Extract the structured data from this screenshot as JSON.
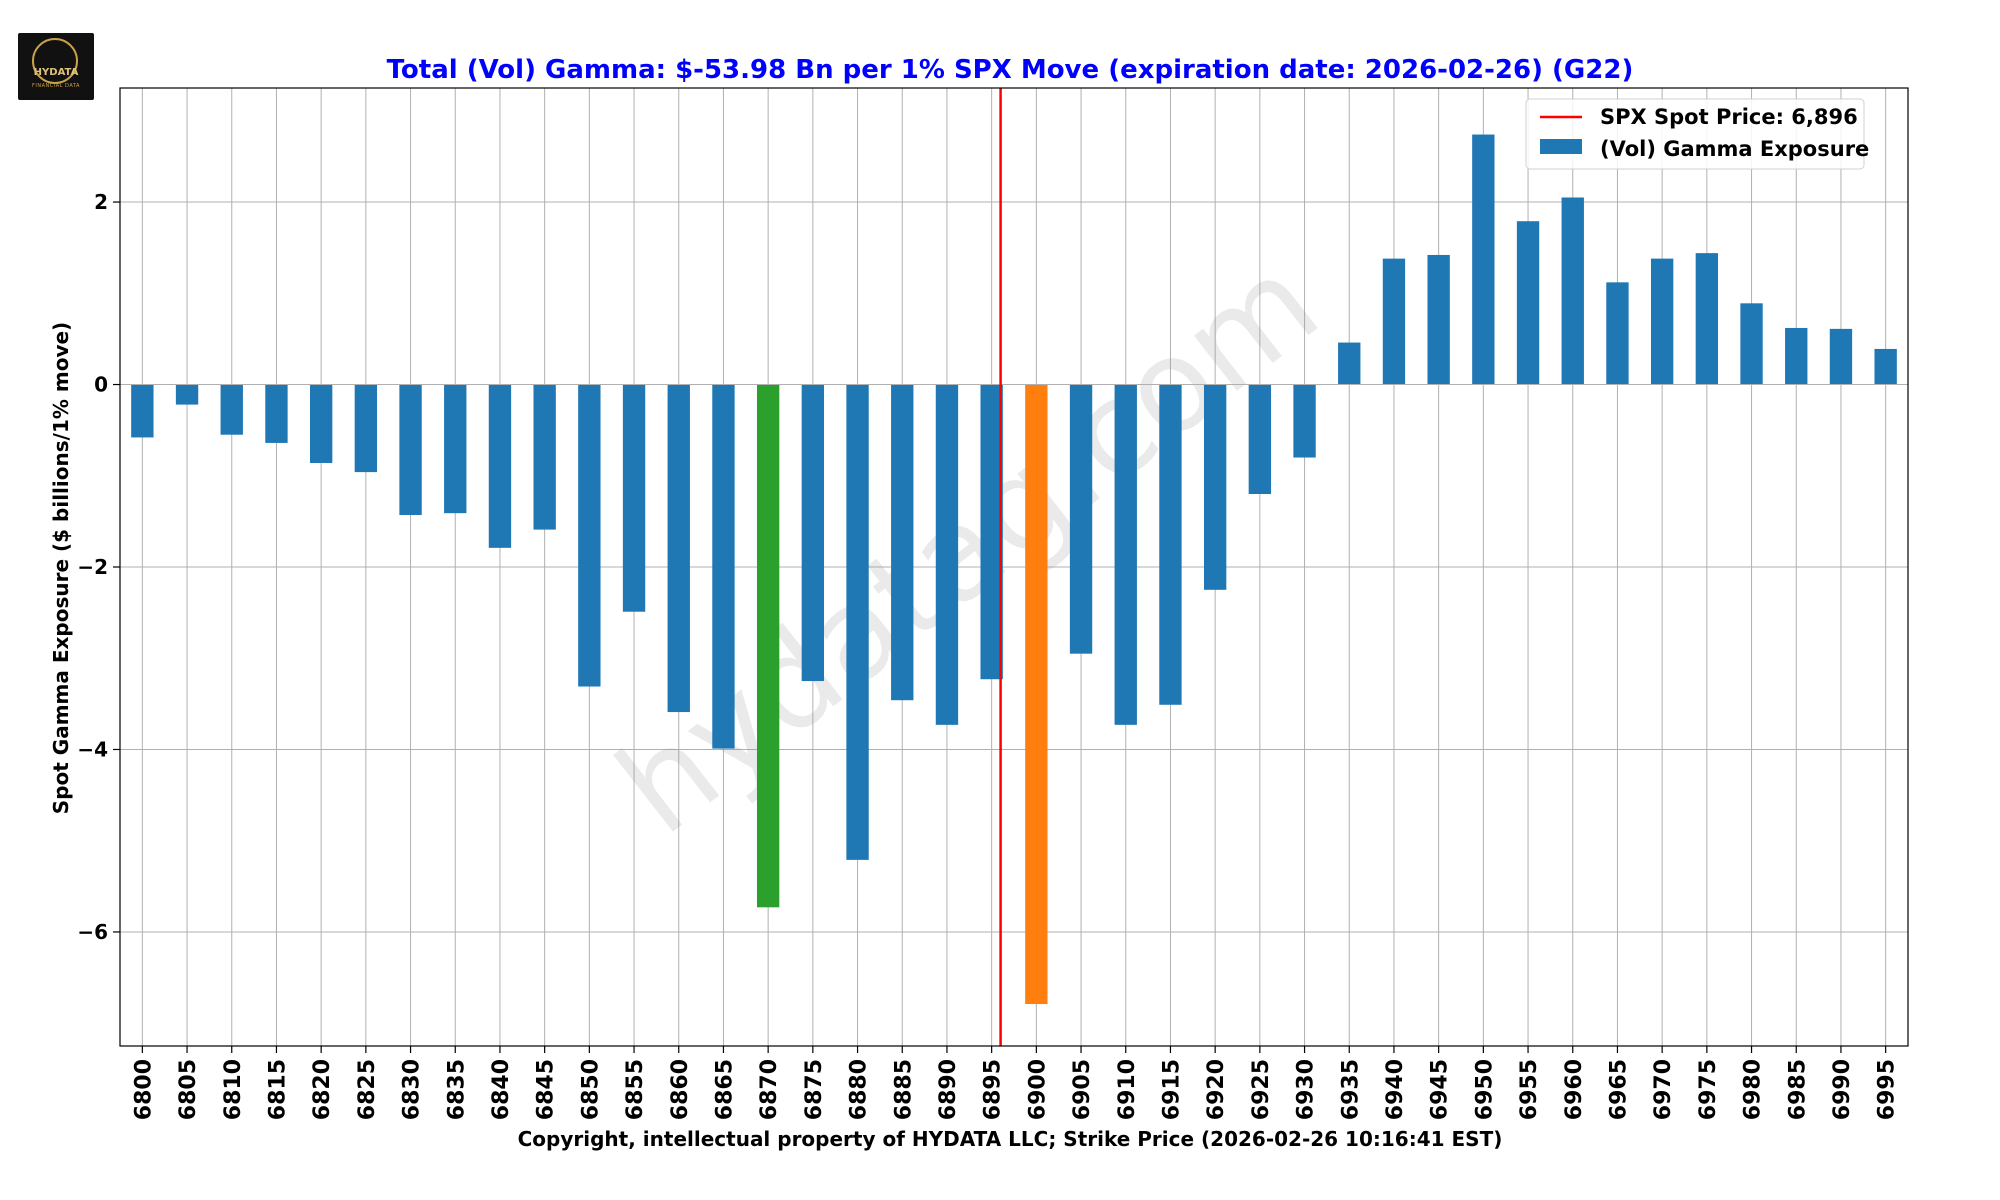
{
  "logo": {
    "text": "HYDATA",
    "subtext": "FINANCIAL DATA"
  },
  "chart_data": {
    "type": "bar",
    "title": "Total (Vol) Gamma: $-53.98 Bn per 1% SPX Move (expiration date: 2026-02-26) (G22)",
    "xlabel": "Copyright, intellectual property of HYDATA LLC; Strike Price (2026-02-26 10:16:41 EST)",
    "ylabel": "Spot Gamma Exposure ($ billions/1% move)",
    "ylim": [
      -7.25,
      3.25
    ],
    "yticks": [
      -6,
      -4,
      -2,
      0,
      2
    ],
    "ytick_labels": [
      "−6",
      "−4",
      "−2",
      "0",
      "2"
    ],
    "grid": true,
    "legend_position": "top-right",
    "categories": [
      "6800",
      "6805",
      "6810",
      "6815",
      "6820",
      "6825",
      "6830",
      "6835",
      "6840",
      "6845",
      "6850",
      "6855",
      "6860",
      "6865",
      "6870",
      "6875",
      "6880",
      "6885",
      "6890",
      "6895",
      "6900",
      "6905",
      "6910",
      "6915",
      "6920",
      "6925",
      "6930",
      "6935",
      "6940",
      "6945",
      "6950",
      "6955",
      "6960",
      "6965",
      "6970",
      "6975",
      "6980",
      "6985",
      "6990",
      "6995"
    ],
    "values": [
      -0.58,
      -0.22,
      -0.55,
      -0.64,
      -0.86,
      -0.96,
      -1.43,
      -1.41,
      -1.79,
      -1.59,
      -3.31,
      -2.49,
      -3.59,
      -3.99,
      -5.73,
      -3.25,
      -5.21,
      -3.46,
      -3.73,
      -3.23,
      -6.79,
      -2.95,
      -3.73,
      -3.51,
      -2.25,
      -1.2,
      -0.8,
      0.46,
      1.38,
      1.42,
      2.74,
      1.79,
      2.05,
      1.12,
      1.38,
      1.44,
      0.89,
      0.62,
      0.61,
      0.39
    ],
    "series": [
      {
        "name": "(Vol) Gamma Exposure",
        "color": "#1f77b4"
      }
    ],
    "highlights": [
      {
        "category": "6870",
        "color": "#2ca02c"
      },
      {
        "category": "6900",
        "color": "#ff7f0e"
      }
    ],
    "spot_line": {
      "label": "SPX Spot Price: 6,896",
      "value": 6896,
      "color": "#ff0000"
    },
    "watermark": "hydatag.com",
    "title_color": "#0000ff"
  }
}
